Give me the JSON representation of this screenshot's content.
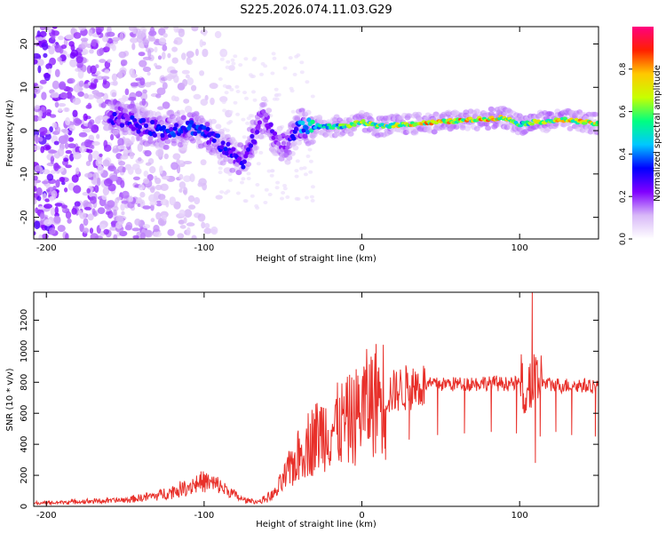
{
  "title": "S225.2026.074.11.03.G29",
  "chart_data": [
    {
      "type": "heatmap",
      "title": "S225.2026.074.11.03.G29",
      "xlabel": "Height of straight line (km)",
      "ylabel": "Frequency (Hz)",
      "xlim": [
        -208,
        150
      ],
      "ylim": [
        -25,
        24
      ],
      "xticks": [
        -200,
        -100,
        0,
        100
      ],
      "yticks": [
        -20,
        -10,
        0,
        10,
        20
      ],
      "colorbar": {
        "label": "Normalized spectral amplitude",
        "range": [
          0,
          1
        ],
        "ticks": [
          0.0,
          0.2,
          0.4,
          0.6,
          0.8
        ],
        "colors": [
          "#ffffff",
          "#d8b8f8",
          "#8000ff",
          "#0000ff",
          "#00c8ff",
          "#00ff80",
          "#c8ff00",
          "#ffc800",
          "#ff2000",
          "#ff0080"
        ]
      },
      "ridge": {
        "x": [
          -155,
          -140,
          -125,
          -110,
          -100,
          -90,
          -80,
          -75,
          -62,
          -55,
          -48,
          -40,
          -30,
          -20,
          -10,
          0,
          10,
          30,
          50,
          70,
          90,
          100,
          110,
          130,
          150
        ],
        "freq_hz": [
          3,
          1,
          0,
          1,
          0,
          -3,
          -6,
          -7,
          4,
          -2,
          -4,
          1,
          1,
          1,
          1,
          2,
          1,
          1.5,
          2,
          2.5,
          3,
          1.5,
          2,
          2.5,
          1.5
        ],
        "amplitude": [
          0.3,
          0.35,
          0.35,
          0.4,
          0.35,
          0.35,
          0.3,
          0.3,
          0.25,
          0.25,
          0.2,
          0.45,
          0.55,
          0.6,
          0.65,
          0.7,
          0.7,
          0.8,
          0.85,
          0.85,
          0.8,
          0.6,
          0.75,
          0.8,
          0.8
        ]
      }
    },
    {
      "type": "line",
      "xlabel": "Height of straight line (km)",
      "ylabel": "SNR (10 * v/v)",
      "xlim": [
        -208,
        150
      ],
      "ylim": [
        0,
        1380
      ],
      "xticks": [
        -200,
        -100,
        0,
        100
      ],
      "yticks": [
        0,
        200,
        400,
        600,
        800,
        1000,
        1200
      ],
      "color": "#e8302a",
      "envelope": {
        "x": [
          -208,
          -180,
          -150,
          -130,
          -115,
          -105,
          -100,
          -90,
          -75,
          -65,
          -55,
          -45,
          -35,
          -25,
          -15,
          -5,
          0,
          10,
          20,
          30,
          45,
          60,
          80,
          100,
          105,
          110,
          115,
          125,
          140,
          150
        ],
        "snr": [
          20,
          30,
          40,
          70,
          110,
          150,
          160,
          130,
          40,
          30,
          80,
          250,
          400,
          480,
          520,
          560,
          640,
          700,
          740,
          770,
          790,
          790,
          795,
          790,
          780,
          800,
          790,
          780,
          780,
          775
        ]
      },
      "spikes": [
        {
          "x": 10,
          "snr": 870
        },
        {
          "x": 15,
          "snr": 300
        },
        {
          "x": 30,
          "snr": 430
        },
        {
          "x": 48,
          "snr": 460
        },
        {
          "x": 65,
          "snr": 470
        },
        {
          "x": 82,
          "snr": 480
        },
        {
          "x": 98,
          "snr": 470
        },
        {
          "x": 108,
          "snr": 1380
        },
        {
          "x": 110,
          "snr": 280
        },
        {
          "x": 113,
          "snr": 450
        },
        {
          "x": 123,
          "snr": 480
        },
        {
          "x": 133,
          "snr": 460
        },
        {
          "x": 148,
          "snr": 450
        }
      ]
    }
  ]
}
